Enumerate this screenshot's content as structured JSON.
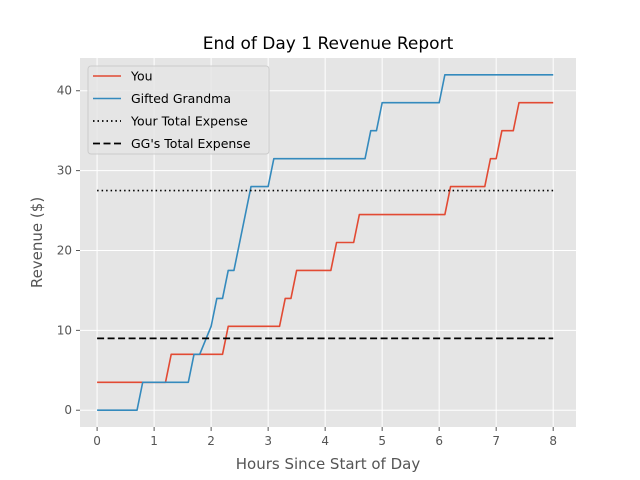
{
  "chart_data": {
    "type": "line",
    "title": "End of Day 1 Revenue Report",
    "xlabel": "Hours Since Start of Day",
    "ylabel": "Revenue ($)",
    "xlim": [
      -0.3,
      8.4
    ],
    "ylim": [
      -2.1,
      44.1
    ],
    "xticks": [
      0,
      1,
      2,
      3,
      4,
      5,
      6,
      7,
      8
    ],
    "yticks": [
      0,
      10,
      20,
      30,
      40
    ],
    "grid": true,
    "legend_position": "top-left",
    "background": "#e5e5e5",
    "series": [
      {
        "name": "You",
        "color": "#e24a33",
        "style": "solid",
        "x": [
          0,
          1.2,
          1.3,
          2.2,
          2.3,
          3.2,
          3.3,
          3.4,
          3.5,
          4.1,
          4.2,
          4.5,
          4.6,
          6.1,
          6.2,
          6.8,
          6.9,
          7.0,
          7.1,
          7.3,
          7.4,
          7.5,
          8
        ],
        "y": [
          3.5,
          3.5,
          7.0,
          7.0,
          10.5,
          10.5,
          14.0,
          14.0,
          17.5,
          17.5,
          21.0,
          21.0,
          24.5,
          24.5,
          28.0,
          28.0,
          31.5,
          31.5,
          35.0,
          35.0,
          38.5,
          38.5,
          38.5
        ]
      },
      {
        "name": "Gifted Grandma",
        "color": "#348abd",
        "style": "solid",
        "x": [
          0,
          0.7,
          0.8,
          1.6,
          1.7,
          1.8,
          2.0,
          2.1,
          2.2,
          2.3,
          2.4,
          2.5,
          2.6,
          2.7,
          2.8,
          3.0,
          3.1,
          4.7,
          4.8,
          4.9,
          5.0,
          5.1,
          6.0,
          6.1,
          8
        ],
        "y": [
          0,
          0,
          3.5,
          3.5,
          7.0,
          7.0,
          10.5,
          14.0,
          14.0,
          17.5,
          17.5,
          21.0,
          24.5,
          28.0,
          28.0,
          28.0,
          31.5,
          31.5,
          35.0,
          35.0,
          38.5,
          38.5,
          38.5,
          42.0,
          42.0
        ]
      },
      {
        "name": "Your Total Expense",
        "color": "#000000",
        "style": "dotted",
        "x": [
          0,
          8
        ],
        "y": [
          27.5,
          27.5
        ]
      },
      {
        "name": "GG's Total Expense",
        "color": "#000000",
        "style": "dashed",
        "x": [
          0,
          8
        ],
        "y": [
          9,
          9
        ]
      }
    ]
  }
}
